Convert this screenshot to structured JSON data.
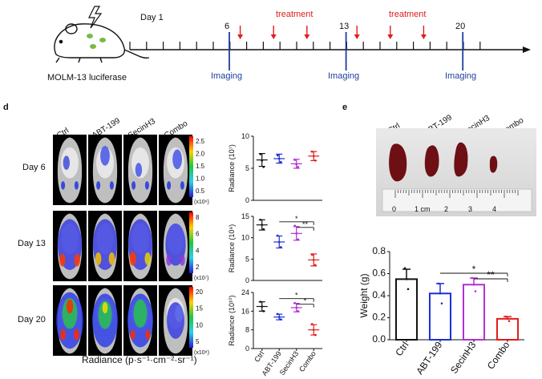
{
  "timeline": {
    "day1": "Day 1",
    "caption": "MOLM-13 luciferase",
    "treatment_label": "treatment",
    "imaging_label": "Imaging",
    "ticks": [
      "6",
      "13",
      "20"
    ],
    "accent": "#e21b1b",
    "imaging_color": "#1f3d9e"
  },
  "panel_d": {
    "letter": "d",
    "groups": [
      "Ctrl",
      "ABT-199",
      "SecinH3",
      "Combo"
    ],
    "days": [
      "Day 6",
      "Day 13",
      "Day 20"
    ],
    "colorbars": [
      {
        "ticks": [
          "2.5",
          "2.0",
          "1.5",
          "1.0",
          "0.5"
        ],
        "unit": "(x10⁶)"
      },
      {
        "ticks": [
          "8",
          "6",
          "4",
          "2"
        ],
        "unit": "(x10⁷)"
      },
      {
        "ticks": [
          "20",
          "15",
          "10",
          "5"
        ],
        "unit": "(x10⁸)"
      }
    ],
    "radiance_axis_label": "Radiance (p·s⁻¹·cm⁻²·sr⁻¹)"
  },
  "panel_e": {
    "letter": "e",
    "groups": [
      "Ctrl",
      "ABT-199",
      "SecinH3",
      "Combo"
    ],
    "ruler_labels": [
      "0",
      "1 cm",
      "2",
      "3",
      "4"
    ]
  },
  "chart_data": [
    {
      "type": "scatter",
      "ylabel": "Radiance (10⁷)",
      "ylim": [
        0,
        10
      ],
      "yticks": [
        "0",
        "5",
        "10"
      ],
      "categories": [
        "Ctrl",
        "ABT-199",
        "SecinH3",
        "Combo"
      ],
      "means": [
        6.3,
        6.5,
        5.7,
        6.9
      ],
      "errors": [
        1.0,
        0.7,
        0.7,
        0.7
      ],
      "points": [
        [
          7.2,
          6.2,
          5.2
        ],
        [
          7.0,
          6.5,
          6.0
        ],
        [
          6.3,
          5.6,
          5.2
        ],
        [
          7.6,
          6.9,
          6.2
        ]
      ],
      "colors": [
        "#111111",
        "#1b2fd6",
        "#b22fd6",
        "#e21b1b"
      ],
      "significance": []
    },
    {
      "type": "scatter",
      "ylabel": "Radiance (10⁹)",
      "ylim": [
        0,
        15
      ],
      "yticks": [
        "0",
        "5",
        "10",
        "15"
      ],
      "categories": [
        "Ctrl",
        "ABT-199",
        "SecinH3",
        "Combo"
      ],
      "means": [
        13.0,
        9.0,
        11.0,
        4.8
      ],
      "errors": [
        1.2,
        1.4,
        1.6,
        1.4
      ],
      "points": [
        [
          14.2,
          13.0,
          12.0
        ],
        [
          10.5,
          9.0,
          7.8
        ],
        [
          12.8,
          11.0,
          9.6
        ],
        [
          6.0,
          4.8,
          3.6
        ]
      ],
      "colors": [
        "#111111",
        "#1b2fd6",
        "#b22fd6",
        "#e21b1b"
      ],
      "significance": [
        "*",
        "**"
      ]
    },
    {
      "type": "scatter",
      "ylabel": "Radiance (10¹⁰)",
      "ylim": [
        0,
        24
      ],
      "yticks": [
        "0",
        "8",
        "16",
        "24"
      ],
      "categories": [
        "Ctrl",
        "ABT-199",
        "SecinH3",
        "Combo"
      ],
      "xtick_labels": [
        "Ctrl",
        "ABT-199",
        "SecinH3",
        "Combo"
      ],
      "means": [
        18.0,
        13.5,
        17.5,
        8.0
      ],
      "errors": [
        2.0,
        1.2,
        1.8,
        2.2
      ],
      "points": [
        [
          20.0,
          18.0,
          16.0
        ],
        [
          14.8,
          13.5,
          12.5
        ],
        [
          19.5,
          17.5,
          16.0
        ],
        [
          10.5,
          8.0,
          5.8
        ]
      ],
      "colors": [
        "#111111",
        "#1b2fd6",
        "#b22fd6",
        "#e21b1b"
      ],
      "significance": [
        "*",
        "*"
      ]
    },
    {
      "type": "bar",
      "ylabel": "Weight (g)",
      "ylim": [
        0,
        0.8
      ],
      "yticks": [
        "0.0",
        "0.2",
        "0.4",
        "0.6",
        "0.8"
      ],
      "categories": [
        "Ctrl",
        "ABT-199",
        "SecinH3",
        "Combo"
      ],
      "values": [
        0.55,
        0.42,
        0.5,
        0.19
      ],
      "errors": [
        0.09,
        0.09,
        0.06,
        0.02
      ],
      "points": [
        [
          0.65,
          0.55,
          0.46
        ],
        [
          0.51,
          0.42,
          0.33
        ],
        [
          0.56,
          0.5,
          0.44
        ],
        [
          0.21,
          0.19,
          0.17
        ]
      ],
      "colors": [
        "#111111",
        "#1b2fd6",
        "#b22fd6",
        "#e21b1b"
      ],
      "significance": [
        "*",
        "**"
      ]
    }
  ]
}
